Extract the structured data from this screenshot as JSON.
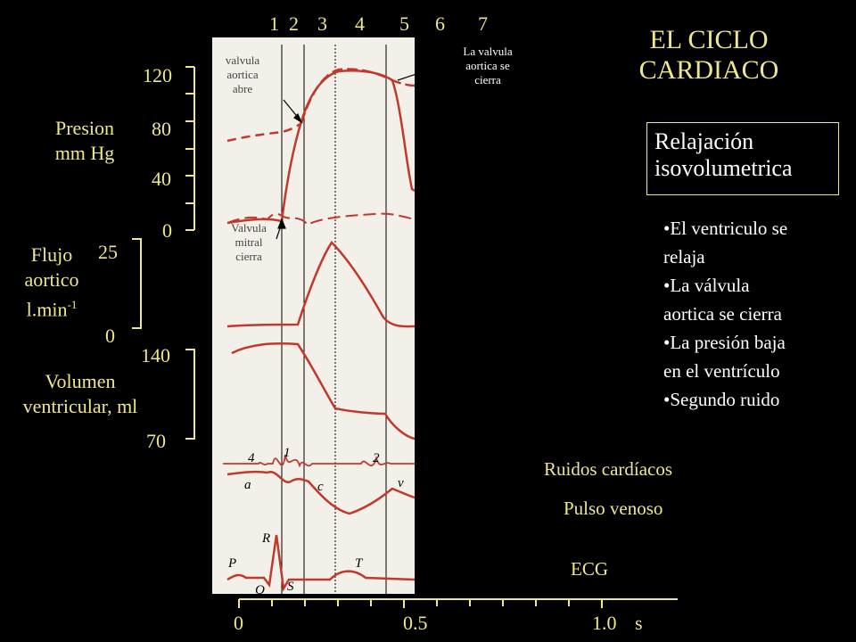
{
  "title": {
    "line1": "EL CICLO",
    "line2": "CARDIACO"
  },
  "phase_numbers": [
    "1",
    "2",
    "3",
    "4",
    "5",
    "6",
    "7"
  ],
  "phase_box": {
    "line1": "Relajación",
    "line2": "isovolumetrica"
  },
  "bullets": [
    {
      "line1": "•El ventriculo se",
      "line2": "relaja"
    },
    {
      "line1": "•La válvula",
      "line2": "aortica se cierra"
    },
    {
      "line1": "•La presión baja",
      "line2": "en el ventrículo"
    },
    {
      "line1": "•Segundo ruido",
      "line2": ""
    }
  ],
  "pressure": {
    "label1": "Presion",
    "label2": "mm Hg",
    "ticks": [
      "120",
      "80",
      "40",
      "0"
    ]
  },
  "flow": {
    "label1": "Flujo",
    "label2": "aortico",
    "label3": "l.min",
    "label3_sup": "-1",
    "ticks": [
      "25",
      "0"
    ]
  },
  "volume": {
    "label1": "Volumen",
    "label2": "ventricular, ml",
    "ticks": [
      "140",
      "70"
    ]
  },
  "annotations": {
    "aortic_open": {
      "line1": "valvula",
      "line2": "aortica",
      "line3": "abre"
    },
    "aortic_close": {
      "line1": "La valvula",
      "line2": "aortica se",
      "line3": "cierra"
    },
    "mitral_close": {
      "line1": "Valvula",
      "line2": "mitral",
      "line3": "cierra"
    }
  },
  "sound_marks": [
    "4",
    "1",
    "2"
  ],
  "venous_marks": [
    "a",
    "c",
    "v"
  ],
  "ecg_marks": [
    "P",
    "R",
    "Q",
    "S",
    "T"
  ],
  "right_labels": {
    "sounds": "Ruidos cardíacos",
    "venous": "Pulso venoso",
    "ecg": "ECG"
  },
  "time_axis": {
    "ticks": [
      "0",
      "0.5",
      "1.0"
    ],
    "unit": "s"
  },
  "colors": {
    "accent": "#f0e68c",
    "trace": "#c0392b",
    "paper": "#f3f0ea",
    "background": "#000000"
  }
}
